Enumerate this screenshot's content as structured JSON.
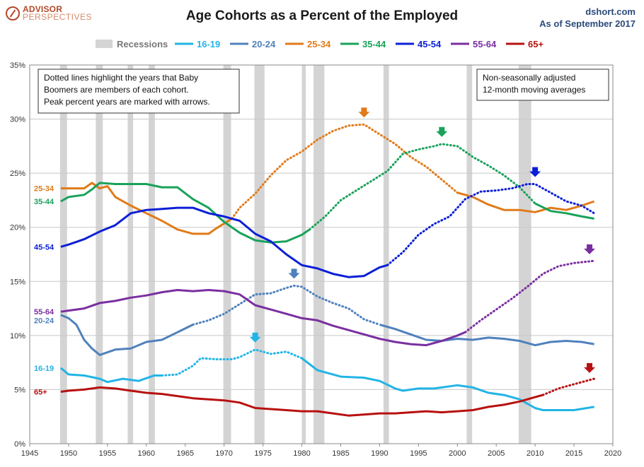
{
  "brand": {
    "line1": "ADVISOR",
    "line2": "PERSPECTIVES",
    "icon": "compass-logo-icon"
  },
  "source": {
    "site": "dshort.com",
    "asof": "As of September 2017"
  },
  "chart_data": {
    "type": "line",
    "title": "Age Cohorts as a Percent of the Employed",
    "xlabel": "",
    "ylabel": "",
    "xlim": [
      1945,
      2020
    ],
    "ylim": [
      0,
      35
    ],
    "xticks": [
      1945,
      1950,
      1955,
      1960,
      1965,
      1970,
      1975,
      1980,
      1985,
      1990,
      1995,
      2000,
      2005,
      2010,
      2015,
      2020
    ],
    "yticks": [
      0,
      5,
      10,
      15,
      20,
      25,
      30,
      35
    ],
    "ytick_format": "percent",
    "grid": "horizontal",
    "legend_position": "top",
    "recession_label": "Recessions",
    "recession_color": "#d4d4d4",
    "recessions": [
      [
        1948.9,
        1949.8
      ],
      [
        1953.5,
        1954.4
      ],
      [
        1957.6,
        1958.3
      ],
      [
        1960.3,
        1961.1
      ],
      [
        1969.9,
        1970.9
      ],
      [
        1973.9,
        1975.2
      ],
      [
        1980.0,
        1980.5
      ],
      [
        1981.5,
        1982.9
      ],
      [
        1990.5,
        1991.2
      ],
      [
        2001.2,
        2001.9
      ],
      [
        2007.9,
        2009.5
      ]
    ],
    "series": [
      {
        "name": "16-19",
        "color": "#22b4e6",
        "label": "16-19",
        "solid_until": 1962,
        "dotted_from": 1962,
        "dotted_until": 1980,
        "peak": 1974,
        "points": [
          [
            1949,
            7.0
          ],
          [
            1950,
            6.4
          ],
          [
            1952,
            6.3
          ],
          [
            1954,
            6.0
          ],
          [
            1955,
            5.7
          ],
          [
            1957,
            6.0
          ],
          [
            1959,
            5.8
          ],
          [
            1961,
            6.3
          ],
          [
            1962,
            6.3
          ],
          [
            1964,
            6.4
          ],
          [
            1966,
            7.2
          ],
          [
            1967,
            7.9
          ],
          [
            1969,
            7.8
          ],
          [
            1971,
            7.8
          ],
          [
            1972,
            8.0
          ],
          [
            1974,
            8.7
          ],
          [
            1976,
            8.3
          ],
          [
            1978,
            8.5
          ],
          [
            1980,
            7.9
          ],
          [
            1982,
            6.8
          ],
          [
            1985,
            6.2
          ],
          [
            1988,
            6.1
          ],
          [
            1990,
            5.8
          ],
          [
            1992,
            5.1
          ],
          [
            1993,
            4.9
          ],
          [
            1995,
            5.1
          ],
          [
            1997,
            5.1
          ],
          [
            1999,
            5.3
          ],
          [
            2000,
            5.4
          ],
          [
            2002,
            5.2
          ],
          [
            2004,
            4.7
          ],
          [
            2006,
            4.5
          ],
          [
            2008,
            4.1
          ],
          [
            2010,
            3.3
          ],
          [
            2011,
            3.1
          ],
          [
            2013,
            3.1
          ],
          [
            2015,
            3.1
          ],
          [
            2017.6,
            3.4
          ]
        ]
      },
      {
        "name": "20-24",
        "color": "#4f81bd",
        "label": "20-24",
        "solid_until": 1966,
        "dotted_from": 1966,
        "dotted_until": 1990,
        "peak": 1979,
        "points": [
          [
            1949,
            11.9
          ],
          [
            1950,
            11.6
          ],
          [
            1951,
            11.0
          ],
          [
            1952,
            9.6
          ],
          [
            1953,
            8.8
          ],
          [
            1954,
            8.2
          ],
          [
            1956,
            8.7
          ],
          [
            1958,
            8.8
          ],
          [
            1960,
            9.4
          ],
          [
            1962,
            9.6
          ],
          [
            1964,
            10.3
          ],
          [
            1966,
            11.0
          ],
          [
            1968,
            11.4
          ],
          [
            1970,
            12.0
          ],
          [
            1972,
            12.9
          ],
          [
            1974,
            13.8
          ],
          [
            1976,
            13.9
          ],
          [
            1978,
            14.4
          ],
          [
            1979,
            14.6
          ],
          [
            1980,
            14.5
          ],
          [
            1982,
            13.6
          ],
          [
            1984,
            13.0
          ],
          [
            1986,
            12.5
          ],
          [
            1988,
            11.5
          ],
          [
            1990,
            11.0
          ],
          [
            1992,
            10.6
          ],
          [
            1994,
            10.1
          ],
          [
            1996,
            9.6
          ],
          [
            1998,
            9.5
          ],
          [
            2000,
            9.7
          ],
          [
            2002,
            9.6
          ],
          [
            2004,
            9.8
          ],
          [
            2006,
            9.7
          ],
          [
            2008,
            9.5
          ],
          [
            2010,
            9.1
          ],
          [
            2012,
            9.4
          ],
          [
            2014,
            9.5
          ],
          [
            2016,
            9.4
          ],
          [
            2017.6,
            9.2
          ]
        ]
      },
      {
        "name": "25-34",
        "color": "#e07b1a",
        "label": "25-34",
        "solid_until": 1971,
        "dotted_from": 1971,
        "dotted_until": 2000,
        "peak": 1988,
        "points": [
          [
            1949,
            23.6
          ],
          [
            1950,
            23.6
          ],
          [
            1952,
            23.6
          ],
          [
            1953,
            24.1
          ],
          [
            1954,
            23.6
          ],
          [
            1955,
            23.8
          ],
          [
            1956,
            22.8
          ],
          [
            1958,
            22.0
          ],
          [
            1960,
            21.3
          ],
          [
            1962,
            20.6
          ],
          [
            1964,
            19.8
          ],
          [
            1966,
            19.4
          ],
          [
            1968,
            19.4
          ],
          [
            1969,
            19.9
          ],
          [
            1971,
            20.8
          ],
          [
            1972,
            21.8
          ],
          [
            1974,
            23.1
          ],
          [
            1976,
            24.8
          ],
          [
            1978,
            26.2
          ],
          [
            1980,
            27.0
          ],
          [
            1982,
            28.1
          ],
          [
            1984,
            28.9
          ],
          [
            1986,
            29.4
          ],
          [
            1988,
            29.5
          ],
          [
            1990,
            28.6
          ],
          [
            1992,
            27.7
          ],
          [
            1994,
            26.5
          ],
          [
            1996,
            25.6
          ],
          [
            1998,
            24.4
          ],
          [
            2000,
            23.2
          ],
          [
            2002,
            22.8
          ],
          [
            2004,
            22.1
          ],
          [
            2006,
            21.6
          ],
          [
            2008,
            21.6
          ],
          [
            2010,
            21.4
          ],
          [
            2012,
            21.8
          ],
          [
            2014,
            21.6
          ],
          [
            2016,
            22.0
          ],
          [
            2017.6,
            22.4
          ]
        ]
      },
      {
        "name": "35-44",
        "color": "#19a25a",
        "label": "35-44",
        "solid_until": 1981,
        "dotted_from": 1981,
        "dotted_until": 2010,
        "peak": 1998,
        "points": [
          [
            1949,
            22.4
          ],
          [
            1950,
            22.8
          ],
          [
            1952,
            23.0
          ],
          [
            1953,
            23.5
          ],
          [
            1954,
            24.1
          ],
          [
            1956,
            24.0
          ],
          [
            1958,
            24.0
          ],
          [
            1960,
            24.0
          ],
          [
            1962,
            23.7
          ],
          [
            1964,
            23.7
          ],
          [
            1966,
            22.6
          ],
          [
            1968,
            21.8
          ],
          [
            1970,
            20.5
          ],
          [
            1972,
            19.5
          ],
          [
            1974,
            18.8
          ],
          [
            1976,
            18.6
          ],
          [
            1978,
            18.7
          ],
          [
            1980,
            19.3
          ],
          [
            1981,
            19.8
          ],
          [
            1983,
            21.0
          ],
          [
            1985,
            22.5
          ],
          [
            1987,
            23.4
          ],
          [
            1989,
            24.3
          ],
          [
            1991,
            25.2
          ],
          [
            1993,
            26.8
          ],
          [
            1995,
            27.2
          ],
          [
            1997,
            27.5
          ],
          [
            1998,
            27.7
          ],
          [
            2000,
            27.5
          ],
          [
            2002,
            26.5
          ],
          [
            2004,
            25.7
          ],
          [
            2006,
            24.8
          ],
          [
            2008,
            23.7
          ],
          [
            2010,
            22.2
          ],
          [
            2012,
            21.5
          ],
          [
            2014,
            21.3
          ],
          [
            2016,
            21.0
          ],
          [
            2017.6,
            20.8
          ]
        ]
      },
      {
        "name": "45-54",
        "color": "#0b1fd6",
        "label": "45-54",
        "solid_until": 1991,
        "dotted_from": 1991,
        "dotted_until": 2017.6,
        "peak": 2010,
        "points": [
          [
            1949,
            18.2
          ],
          [
            1950,
            18.4
          ],
          [
            1952,
            18.9
          ],
          [
            1954,
            19.6
          ],
          [
            1956,
            20.2
          ],
          [
            1958,
            21.3
          ],
          [
            1960,
            21.6
          ],
          [
            1962,
            21.7
          ],
          [
            1964,
            21.8
          ],
          [
            1966,
            21.8
          ],
          [
            1968,
            21.3
          ],
          [
            1970,
            21.0
          ],
          [
            1972,
            20.6
          ],
          [
            1974,
            19.4
          ],
          [
            1976,
            18.7
          ],
          [
            1978,
            17.5
          ],
          [
            1980,
            16.5
          ],
          [
            1982,
            16.2
          ],
          [
            1984,
            15.7
          ],
          [
            1986,
            15.4
          ],
          [
            1988,
            15.5
          ],
          [
            1990,
            16.3
          ],
          [
            1991,
            16.5
          ],
          [
            1993,
            17.7
          ],
          [
            1995,
            19.3
          ],
          [
            1997,
            20.3
          ],
          [
            1999,
            21.0
          ],
          [
            2001,
            22.6
          ],
          [
            2003,
            23.3
          ],
          [
            2005,
            23.4
          ],
          [
            2007,
            23.6
          ],
          [
            2009,
            24.0
          ],
          [
            2010,
            24.0
          ],
          [
            2012,
            23.2
          ],
          [
            2014,
            22.4
          ],
          [
            2016,
            22.0
          ],
          [
            2017.6,
            21.3
          ]
        ]
      },
      {
        "name": "55-64",
        "color": "#7a2fa0",
        "label": "55-64",
        "solid_until": 2001,
        "dotted_from": 2001,
        "dotted_until": 2017.6,
        "peak": 2017,
        "points": [
          [
            1949,
            12.2
          ],
          [
            1950,
            12.3
          ],
          [
            1952,
            12.5
          ],
          [
            1954,
            13.0
          ],
          [
            1956,
            13.2
          ],
          [
            1958,
            13.5
          ],
          [
            1960,
            13.7
          ],
          [
            1962,
            14.0
          ],
          [
            1964,
            14.2
          ],
          [
            1966,
            14.1
          ],
          [
            1968,
            14.2
          ],
          [
            1970,
            14.1
          ],
          [
            1972,
            13.8
          ],
          [
            1974,
            12.8
          ],
          [
            1976,
            12.4
          ],
          [
            1978,
            12.0
          ],
          [
            1980,
            11.6
          ],
          [
            1982,
            11.4
          ],
          [
            1984,
            10.9
          ],
          [
            1986,
            10.5
          ],
          [
            1988,
            10.1
          ],
          [
            1990,
            9.7
          ],
          [
            1992,
            9.4
          ],
          [
            1994,
            9.2
          ],
          [
            1996,
            9.1
          ],
          [
            1998,
            9.5
          ],
          [
            2000,
            10.0
          ],
          [
            2001,
            10.3
          ],
          [
            2003,
            11.4
          ],
          [
            2005,
            12.4
          ],
          [
            2007,
            13.4
          ],
          [
            2009,
            14.5
          ],
          [
            2011,
            15.7
          ],
          [
            2013,
            16.4
          ],
          [
            2015,
            16.7
          ],
          [
            2017.6,
            16.9
          ]
        ]
      },
      {
        "name": "65+",
        "color": "#b81010",
        "label": "65+",
        "solid_until": 2011,
        "dotted_from": 2011,
        "dotted_until": 2017.6,
        "peak": 2017,
        "points": [
          [
            1949,
            4.8
          ],
          [
            1950,
            4.9
          ],
          [
            1952,
            5.0
          ],
          [
            1954,
            5.2
          ],
          [
            1956,
            5.1
          ],
          [
            1958,
            4.9
          ],
          [
            1960,
            4.7
          ],
          [
            1962,
            4.6
          ],
          [
            1964,
            4.4
          ],
          [
            1966,
            4.2
          ],
          [
            1968,
            4.1
          ],
          [
            1970,
            4.0
          ],
          [
            1972,
            3.8
          ],
          [
            1974,
            3.3
          ],
          [
            1976,
            3.2
          ],
          [
            1978,
            3.1
          ],
          [
            1980,
            3.0
          ],
          [
            1982,
            3.0
          ],
          [
            1984,
            2.8
          ],
          [
            1986,
            2.6
          ],
          [
            1988,
            2.7
          ],
          [
            1990,
            2.8
          ],
          [
            1992,
            2.8
          ],
          [
            1994,
            2.9
          ],
          [
            1996,
            3.0
          ],
          [
            1998,
            2.9
          ],
          [
            2000,
            3.0
          ],
          [
            2002,
            3.1
          ],
          [
            2004,
            3.4
          ],
          [
            2006,
            3.6
          ],
          [
            2008,
            3.9
          ],
          [
            2010,
            4.3
          ],
          [
            2011,
            4.5
          ],
          [
            2013,
            5.1
          ],
          [
            2015,
            5.5
          ],
          [
            2017.6,
            6.0
          ]
        ]
      }
    ],
    "series_labels_left": [
      {
        "series": "25-34",
        "text": "25-34",
        "y": 23.6
      },
      {
        "series": "35-44",
        "text": "35-44",
        "y": 22.4
      },
      {
        "series": "45-54",
        "text": "45-54",
        "y": 18.2
      },
      {
        "series": "55-64",
        "text": "55-64",
        "y": 12.2
      },
      {
        "series": "20-24",
        "text": "20-24",
        "y": 11.4
      },
      {
        "series": "16-19",
        "text": "16-19",
        "y": 7.0
      },
      {
        "series": "65+",
        "text": "65+",
        "y": 4.8
      }
    ],
    "annotations": {
      "left_note": [
        "Dotted lines highlight the years that Baby",
        "Boomers are members of each cohort.",
        "Peak percent years are marked with arrows."
      ],
      "right_note": [
        "Non-seasonally adjusted",
        "12-month moving averages"
      ]
    }
  }
}
